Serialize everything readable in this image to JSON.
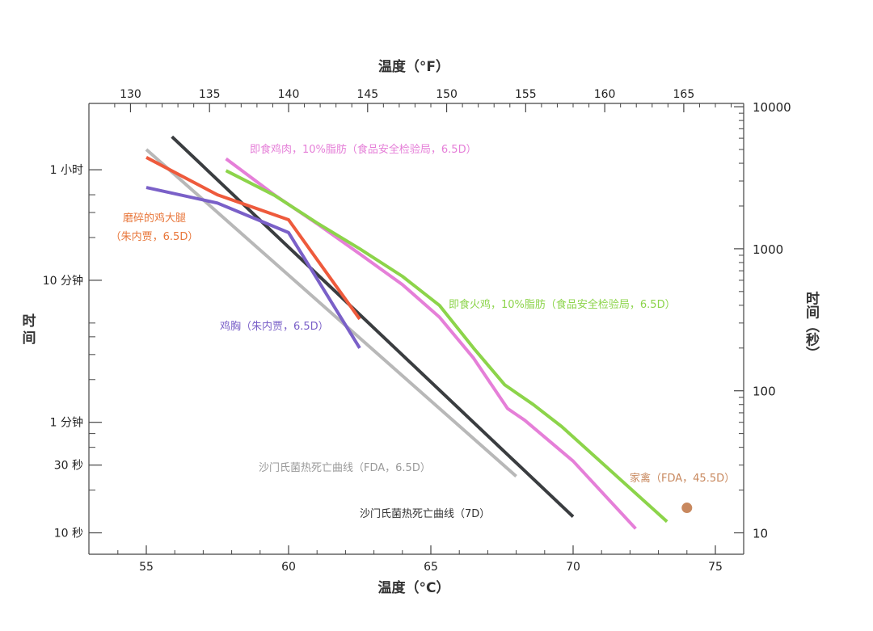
{
  "chart_data": {
    "type": "line",
    "x_axis_bottom": {
      "label": "温度（°C）",
      "ticks": [
        55,
        60,
        65,
        70,
        75
      ],
      "range": [
        53.8,
        76.2
      ]
    },
    "x_axis_top": {
      "label": "温度（°F）",
      "ticks": [
        130,
        135,
        140,
        145,
        150,
        155,
        160,
        165
      ],
      "range": [
        128.8,
        169.2
      ]
    },
    "y_axis_left": {
      "label": "时间",
      "scale": "log",
      "ticks": [
        {
          "value": 3600,
          "label": "1 小时"
        },
        {
          "value": 600,
          "label": "10 分钟"
        },
        {
          "value": 60,
          "label": "1 分钟"
        },
        {
          "value": 30,
          "label": "30 秒"
        },
        {
          "value": 10,
          "label": "10 秒"
        }
      ]
    },
    "y_axis_right": {
      "label": "时间（秒）",
      "scale": "log",
      "ticks": [
        10,
        100,
        1000,
        10000
      ]
    },
    "series": [
      {
        "name": "沙门氏菌热死亡曲线（FDA，6.5D）",
        "color": "#b8b8b8",
        "points": [
          [
            55,
            5000
          ],
          [
            68,
            25
          ]
        ]
      },
      {
        "name": "沙门氏菌热死亡曲线（7D）",
        "color": "#3a3d40",
        "points": [
          [
            55.9,
            6150
          ],
          [
            70,
            13
          ]
        ]
      },
      {
        "name": "即食鸡肉，10%脂肪（食品安全检验局，6.5D）",
        "color": "#e57fd8",
        "points": [
          [
            57.8,
            4300
          ],
          [
            59.5,
            2400
          ],
          [
            61,
            1500
          ],
          [
            62.5,
            920
          ],
          [
            64,
            560
          ],
          [
            65.3,
            330
          ],
          [
            66.5,
            170
          ],
          [
            67.7,
            75
          ],
          [
            68.3,
            62
          ],
          [
            70,
            32
          ],
          [
            72.2,
            10.7
          ]
        ]
      },
      {
        "name": "即食火鸡，10%脂肪（食品安全检验局，6.5D）",
        "color": "#8cd44a",
        "points": [
          [
            57.8,
            3550
          ],
          [
            59.5,
            2380
          ],
          [
            61,
            1520
          ],
          [
            62.5,
            1000
          ],
          [
            64,
            640
          ],
          [
            65.3,
            400
          ],
          [
            66.5,
            200
          ],
          [
            67.6,
            110
          ],
          [
            68.6,
            80
          ],
          [
            69.6,
            56
          ],
          [
            73.3,
            12
          ]
        ]
      },
      {
        "name": "磨碎的鸡大腿（朱内贾，6.5D）",
        "color": "#ee5a3c",
        "points": [
          [
            55,
            4400
          ],
          [
            57.5,
            2400
          ],
          [
            60,
            1600
          ],
          [
            62.5,
            320
          ]
        ]
      },
      {
        "name": "鸡胸（朱内贾，6.5D）",
        "color": "#7a60c8",
        "points": [
          [
            55,
            2700
          ],
          [
            57.5,
            2100
          ],
          [
            60,
            1300
          ],
          [
            62.5,
            200
          ]
        ]
      }
    ],
    "marker": {
      "name": "家禽（FDA，45.5D）",
      "color": "#c8885e",
      "x": 74,
      "y": 15
    },
    "labels": {
      "chicken_meat": "即食鸡肉，10%脂肪（食品安全检验局，6.5D）",
      "turkey": "即食火鸡，10%脂肪（食品安全检验局，6.5D）",
      "thigh_1": "磨碎的鸡大腿",
      "thigh_2": "（朱内贾，6.5D）",
      "breast": "鸡胸（朱内贾，6.5D）",
      "fda65": "沙门氏菌热死亡曲线（FDA，6.5D）",
      "d7": "沙门氏菌热死亡曲线（7D）",
      "poultry": "家禽（FDA，45.5D）"
    }
  }
}
